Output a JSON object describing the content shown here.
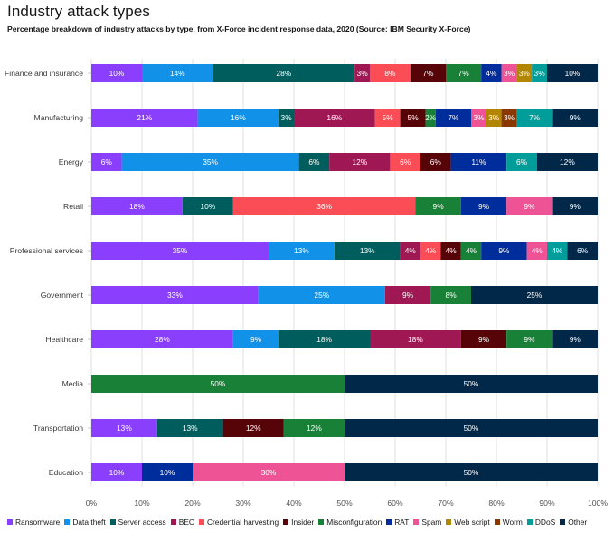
{
  "chart_data": {
    "type": "stacked-horizontal-bar",
    "title": "Industry attack types",
    "subtitle": "Percentage breakdown of industry attacks by type, from X-Force incident response data, 2020 (Source: IBM Security X-Force)",
    "xlim": [
      0,
      100
    ],
    "x_ticks": [
      "0%",
      "10%",
      "20%",
      "30%",
      "40%",
      "50%",
      "60%",
      "70%",
      "80%",
      "90%",
      "100%"
    ],
    "grid": "vertical",
    "legend_position": "bottom",
    "series": [
      {
        "name": "Ransomware",
        "color": "#8a3ffc"
      },
      {
        "name": "Data theft",
        "color": "#1192e8"
      },
      {
        "name": "Server access",
        "color": "#005d5d"
      },
      {
        "name": "BEC",
        "color": "#9f1853"
      },
      {
        "name": "Credential harvesting",
        "color": "#fa4d56"
      },
      {
        "name": "Insider",
        "color": "#570408"
      },
      {
        "name": "Misconfiguration",
        "color": "#198038"
      },
      {
        "name": "RAT",
        "color": "#002d9c"
      },
      {
        "name": "Spam",
        "color": "#ee5396"
      },
      {
        "name": "Web script",
        "color": "#b28600"
      },
      {
        "name": "Worm",
        "color": "#8a3800"
      },
      {
        "name": "DDoS",
        "color": "#009d9a"
      },
      {
        "name": "Other",
        "color": "#012749"
      }
    ],
    "categories": [
      {
        "name": "Finance and insurance",
        "segments": [
          {
            "series": "Ransomware",
            "value": 10
          },
          {
            "series": "Data theft",
            "value": 14
          },
          {
            "series": "Server access",
            "value": 28
          },
          {
            "series": "BEC",
            "value": 3
          },
          {
            "series": "Credential harvesting",
            "value": 8
          },
          {
            "series": "Insider",
            "value": 7
          },
          {
            "series": "Misconfiguration",
            "value": 7
          },
          {
            "series": "RAT",
            "value": 4
          },
          {
            "series": "Spam",
            "value": 3
          },
          {
            "series": "Web script",
            "value": 3
          },
          {
            "series": "DDoS",
            "value": 3
          },
          {
            "series": "Other",
            "value": 10
          }
        ]
      },
      {
        "name": "Manufacturing",
        "segments": [
          {
            "series": "Ransomware",
            "value": 21
          },
          {
            "series": "Data theft",
            "value": 16
          },
          {
            "series": "Server access",
            "value": 3
          },
          {
            "series": "BEC",
            "value": 16
          },
          {
            "series": "Credential harvesting",
            "value": 5
          },
          {
            "series": "Insider",
            "value": 5
          },
          {
            "series": "Misconfiguration",
            "value": 2
          },
          {
            "series": "RAT",
            "value": 7
          },
          {
            "series": "Spam",
            "value": 3
          },
          {
            "series": "Web script",
            "value": 3
          },
          {
            "series": "Worm",
            "value": 3
          },
          {
            "series": "DDoS",
            "value": 7
          },
          {
            "series": "Other",
            "value": 9
          }
        ]
      },
      {
        "name": "Energy",
        "segments": [
          {
            "series": "Ransomware",
            "value": 6
          },
          {
            "series": "Data theft",
            "value": 35
          },
          {
            "series": "Server access",
            "value": 6
          },
          {
            "series": "BEC",
            "value": 12
          },
          {
            "series": "Credential harvesting",
            "value": 6
          },
          {
            "series": "Insider",
            "value": 6
          },
          {
            "series": "RAT",
            "value": 11
          },
          {
            "series": "DDoS",
            "value": 6
          },
          {
            "series": "Other",
            "value": 12
          }
        ]
      },
      {
        "name": "Retail",
        "segments": [
          {
            "series": "Ransomware",
            "value": 18
          },
          {
            "series": "Server access",
            "value": 10
          },
          {
            "series": "Credential harvesting",
            "value": 36
          },
          {
            "series": "Misconfiguration",
            "value": 9
          },
          {
            "series": "RAT",
            "value": 9
          },
          {
            "series": "Spam",
            "value": 9
          },
          {
            "series": "Other",
            "value": 9
          }
        ]
      },
      {
        "name": "Professional services",
        "segments": [
          {
            "series": "Ransomware",
            "value": 35
          },
          {
            "series": "Data theft",
            "value": 13
          },
          {
            "series": "Server access",
            "value": 13
          },
          {
            "series": "BEC",
            "value": 4
          },
          {
            "series": "Credential harvesting",
            "value": 4
          },
          {
            "series": "Insider",
            "value": 4
          },
          {
            "series": "Misconfiguration",
            "value": 4
          },
          {
            "series": "RAT",
            "value": 9
          },
          {
            "series": "Spam",
            "value": 4
          },
          {
            "series": "DDoS",
            "value": 4
          },
          {
            "series": "Other",
            "value": 6
          }
        ]
      },
      {
        "name": "Government",
        "segments": [
          {
            "series": "Ransomware",
            "value": 33
          },
          {
            "series": "Data theft",
            "value": 25
          },
          {
            "series": "BEC",
            "value": 9
          },
          {
            "series": "Misconfiguration",
            "value": 8
          },
          {
            "series": "Other",
            "value": 25
          }
        ]
      },
      {
        "name": "Healthcare",
        "segments": [
          {
            "series": "Ransomware",
            "value": 28
          },
          {
            "series": "Data theft",
            "value": 9
          },
          {
            "series": "Server access",
            "value": 18
          },
          {
            "series": "BEC",
            "value": 18
          },
          {
            "series": "Insider",
            "value": 9
          },
          {
            "series": "Misconfiguration",
            "value": 9
          },
          {
            "series": "Other",
            "value": 9
          }
        ]
      },
      {
        "name": "Media",
        "segments": [
          {
            "series": "Misconfiguration",
            "value": 50
          },
          {
            "series": "Other",
            "value": 50
          }
        ]
      },
      {
        "name": "Transportation",
        "segments": [
          {
            "series": "Ransomware",
            "value": 13
          },
          {
            "series": "Server access",
            "value": 13
          },
          {
            "series": "Insider",
            "value": 12
          },
          {
            "series": "Misconfiguration",
            "value": 12
          },
          {
            "series": "Other",
            "value": 50
          }
        ]
      },
      {
        "name": "Education",
        "segments": [
          {
            "series": "Ransomware",
            "value": 10
          },
          {
            "series": "RAT",
            "value": 10
          },
          {
            "series": "Spam",
            "value": 30
          },
          {
            "series": "Other",
            "value": 50
          }
        ]
      }
    ]
  }
}
